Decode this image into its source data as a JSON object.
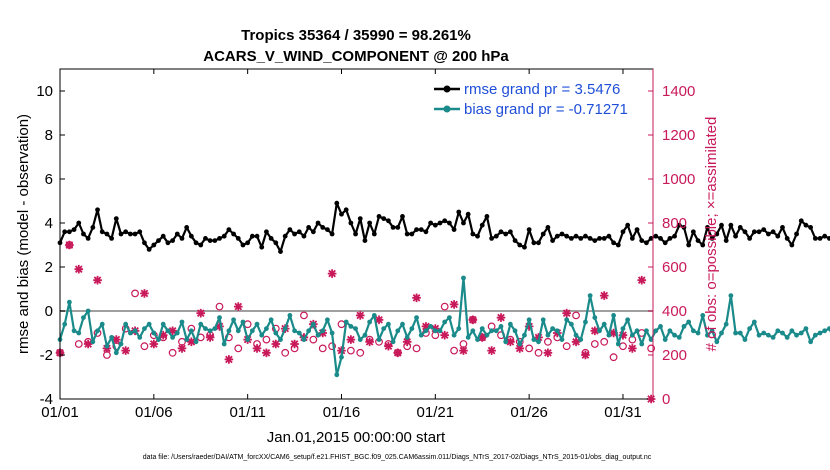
{
  "chart_data": {
    "type": "line",
    "title_line1": "Tropics 35364 / 35990 = 98.261%",
    "title_line2": "ACARS_V_WIND_COMPONENT @ 200 hPa",
    "xlabel": "Jan.01,2015 00:00:00 start",
    "ylabel_left": "rmse and bias (model - observation)",
    "ylabel_right": "# of obs: o=possible; ×=assimilated",
    "xlim": [
      0,
      31.6
    ],
    "ylim_left": [
      -4,
      11
    ],
    "ylim_right": [
      0,
      1500
    ],
    "x_ticks": [
      0,
      5,
      10,
      15,
      20,
      25,
      30
    ],
    "x_tick_labels": [
      "01/01",
      "01/06",
      "01/11",
      "01/16",
      "01/21",
      "01/26",
      "01/31"
    ],
    "y_ticks_left": [
      -4,
      -2,
      0,
      2,
      4,
      6,
      8,
      10
    ],
    "y_tick_labels_left": [
      "-4",
      "-2",
      "0",
      "2",
      "4",
      "6",
      "8",
      "10"
    ],
    "y_ticks_right": [
      0,
      200,
      400,
      600,
      800,
      1000,
      1200,
      1400
    ],
    "y_tick_labels_right": [
      "0",
      "200",
      "400",
      "600",
      "800",
      "1000",
      "1200",
      "1400"
    ],
    "colors": {
      "rmse": "#000000",
      "bias": "#1a8a8a",
      "obs": "#c8195a",
      "zero_line": "#a0a0a0",
      "legend_text": "#1f4fd8"
    },
    "legend": [
      {
        "name": "rmse grand pr = 3.5476",
        "series": "rmse"
      },
      {
        "name": "bias grand pr = -0.71271",
        "series": "bias"
      }
    ],
    "series": [
      {
        "name": "rmse",
        "x_start": 0,
        "x_step": 0.25,
        "values": [
          3.1,
          3.6,
          3.6,
          3.7,
          4.0,
          3.5,
          3.3,
          3.8,
          4.6,
          3.6,
          3.5,
          3.3,
          4.2,
          3.5,
          3.6,
          3.5,
          3.5,
          3.6,
          3.1,
          2.8,
          3.0,
          3.2,
          3.4,
          3.1,
          3.2,
          3.5,
          3.3,
          3.8,
          3.4,
          3.1,
          3.0,
          3.3,
          3.2,
          3.2,
          3.3,
          3.4,
          3.7,
          3.5,
          3.3,
          3.0,
          3.1,
          3.4,
          3.4,
          2.9,
          3.6,
          3.3,
          3.1,
          2.7,
          3.4,
          3.7,
          3.5,
          3.6,
          3.4,
          3.8,
          3.6,
          4.0,
          3.8,
          3.7,
          3.5,
          4.9,
          4.4,
          4.6,
          4.0,
          3.5,
          4.2,
          3.2,
          4.0,
          3.5,
          4.3,
          4.2,
          4.1,
          3.8,
          3.8,
          4.3,
          3.5,
          3.5,
          3.7,
          3.7,
          3.6,
          4.0,
          3.9,
          4.0,
          4.1,
          4.0,
          3.7,
          4.5,
          4.0,
          4.4,
          3.5,
          3.4,
          3.9,
          4.3,
          3.3,
          3.4,
          3.6,
          3.5,
          3.6,
          3.2,
          3.0,
          2.9,
          3.7,
          3.1,
          3.1,
          3.5,
          3.8,
          3.2,
          3.4,
          3.5,
          3.4,
          3.3,
          3.4,
          3.3,
          3.4,
          3.3,
          3.2,
          3.3,
          3.3,
          3.4,
          3.1,
          3.0,
          3.6,
          3.9,
          3.3,
          3.7,
          3.2,
          3.1,
          3.3,
          3.4,
          3.3,
          3.1,
          3.3,
          3.4,
          3.9,
          3.8,
          3.0,
          3.6,
          3.2,
          3.0,
          3.8,
          3.3,
          3.5,
          3.9,
          3.2,
          3.9,
          3.4,
          3.8,
          3.6,
          3.3,
          3.6,
          3.6,
          3.7,
          3.5,
          3.6,
          3.4,
          3.8,
          3.3,
          3.0,
          3.5,
          4.1,
          3.9,
          3.8,
          3.3,
          3.3,
          3.4,
          3.3,
          3.3,
          3.4,
          3.5,
          3.4,
          3.5,
          3.6,
          3.0,
          3.4,
          3.2,
          3.1
        ]
      },
      {
        "name": "bias",
        "x_start": 0,
        "x_step": 0.25,
        "values": [
          -1.3,
          -0.6,
          0.4,
          -0.9,
          -1.0,
          -0.3,
          0.0,
          -1.4,
          -0.9,
          -0.6,
          -1.6,
          -1.2,
          -1.9,
          -1.5,
          -0.6,
          -1.0,
          -0.9,
          -1.2,
          -0.8,
          -0.6,
          -1.0,
          -1.3,
          -0.6,
          -0.9,
          -1.2,
          -1.0,
          -0.5,
          -1.3,
          -0.9,
          -1.4,
          -0.6,
          -0.8,
          -0.9,
          -0.8,
          -0.3,
          -1.5,
          -0.9,
          -0.4,
          -0.9,
          -0.5,
          -1.3,
          -0.9,
          -0.6,
          -1.1,
          -0.8,
          -0.4,
          -1.0,
          -1.3,
          -0.8,
          -0.2,
          -0.9,
          -1.0,
          -1.3,
          -0.9,
          -0.6,
          -1.1,
          -0.9,
          -0.4,
          -1.0,
          -2.9,
          -2.1,
          -0.5,
          -0.7,
          -0.8,
          -1.3,
          -1.1,
          -0.5,
          -0.2,
          -1.3,
          -0.8,
          -0.6,
          -1.4,
          -0.9,
          -0.6,
          -1.2,
          -0.8,
          -0.3,
          -1.1,
          -0.9,
          -0.7,
          -0.9,
          -0.9,
          -0.5,
          -0.3,
          -1.1,
          -0.8,
          1.5,
          -1.2,
          -0.9,
          -1.3,
          -0.8,
          -1.1,
          -0.9,
          -0.9,
          -0.7,
          -1.4,
          -0.6,
          -0.9,
          -1.5,
          -1.1,
          -0.4,
          -1.3,
          -1.4,
          -0.4,
          -1.1,
          -0.8,
          -0.9,
          -1.3,
          -0.4,
          -0.6,
          -1.1,
          -1.3,
          -0.5,
          0.7,
          -0.3,
          -0.9,
          -0.6,
          -1.1,
          -0.2,
          -1.5,
          -0.8,
          -0.4,
          -1.1,
          -0.9,
          -1.5,
          -0.9,
          -1.3,
          -0.9,
          -0.7,
          -1.3,
          -0.9,
          -1.1,
          -1.2,
          -0.7,
          -0.5,
          -0.9,
          -1.0,
          -0.2,
          -1.1,
          -0.9,
          -1.4,
          -1.0,
          -0.6,
          0.7,
          -1.0,
          -1.0,
          -1.3,
          -0.8,
          -0.5,
          -1.1,
          -1.0,
          -1.1,
          -1.2,
          -0.9,
          -1.0,
          -1.2,
          -0.9,
          -1.1,
          -1.0,
          -0.8,
          -1.4,
          -1.1,
          -1.0,
          -0.9,
          -0.8,
          -1.3,
          -1.1,
          -1.2,
          -1.0,
          -1.2,
          -2.2,
          -1.1,
          -1.5,
          -1.3
        ]
      },
      {
        "name": "obs_possible",
        "x_start": 0,
        "x_step": 0.5,
        "values": [
          210,
          700,
          250,
          260,
          300,
          200,
          240,
          320,
          480,
          240,
          290,
          280,
          210,
          260,
          320,
          280,
          290,
          420,
          280,
          230,
          340,
          250,
          270,
          320,
          210,
          230,
          380,
          270,
          230,
          240,
          340,
          220,
          210,
          270,
          260,
          250,
          210,
          240,
          230,
          300,
          290,
          420,
          220,
          250,
          360,
          280,
          330,
          290,
          270,
          260,
          230,
          210,
          260,
          280,
          240,
          380,
          210,
          250,
          260,
          190,
          240,
          270,
          300,
          230
        ]
      },
      {
        "name": "obs_assimilated",
        "x_start": 0,
        "x_step": 0.5,
        "values": [
          210,
          700,
          590,
          250,
          540,
          230,
          270,
          220,
          310,
          480,
          250,
          290,
          310,
          230,
          260,
          390,
          280,
          330,
          180,
          420,
          270,
          230,
          210,
          250,
          320,
          250,
          280,
          340,
          300,
          570,
          220,
          270,
          380,
          260,
          360,
          240,
          210,
          260,
          460,
          330,
          320,
          290,
          430,
          220,
          360,
          280,
          220,
          370,
          260,
          230,
          330,
          280,
          210,
          300,
          390,
          260,
          200,
          310,
          470,
          300,
          290,
          230,
          540,
          0
        ]
      }
    ]
  },
  "footer": {
    "text": "data file: /Users/raeder/DAI/ATM_forcXX/CAM6_setup/f.e21.FHIST_BGC.f09_025.CAM6assim.011/Diags_NTrS_2017-02/Diags_NTrS_2015-01/obs_diag_output.nc"
  }
}
